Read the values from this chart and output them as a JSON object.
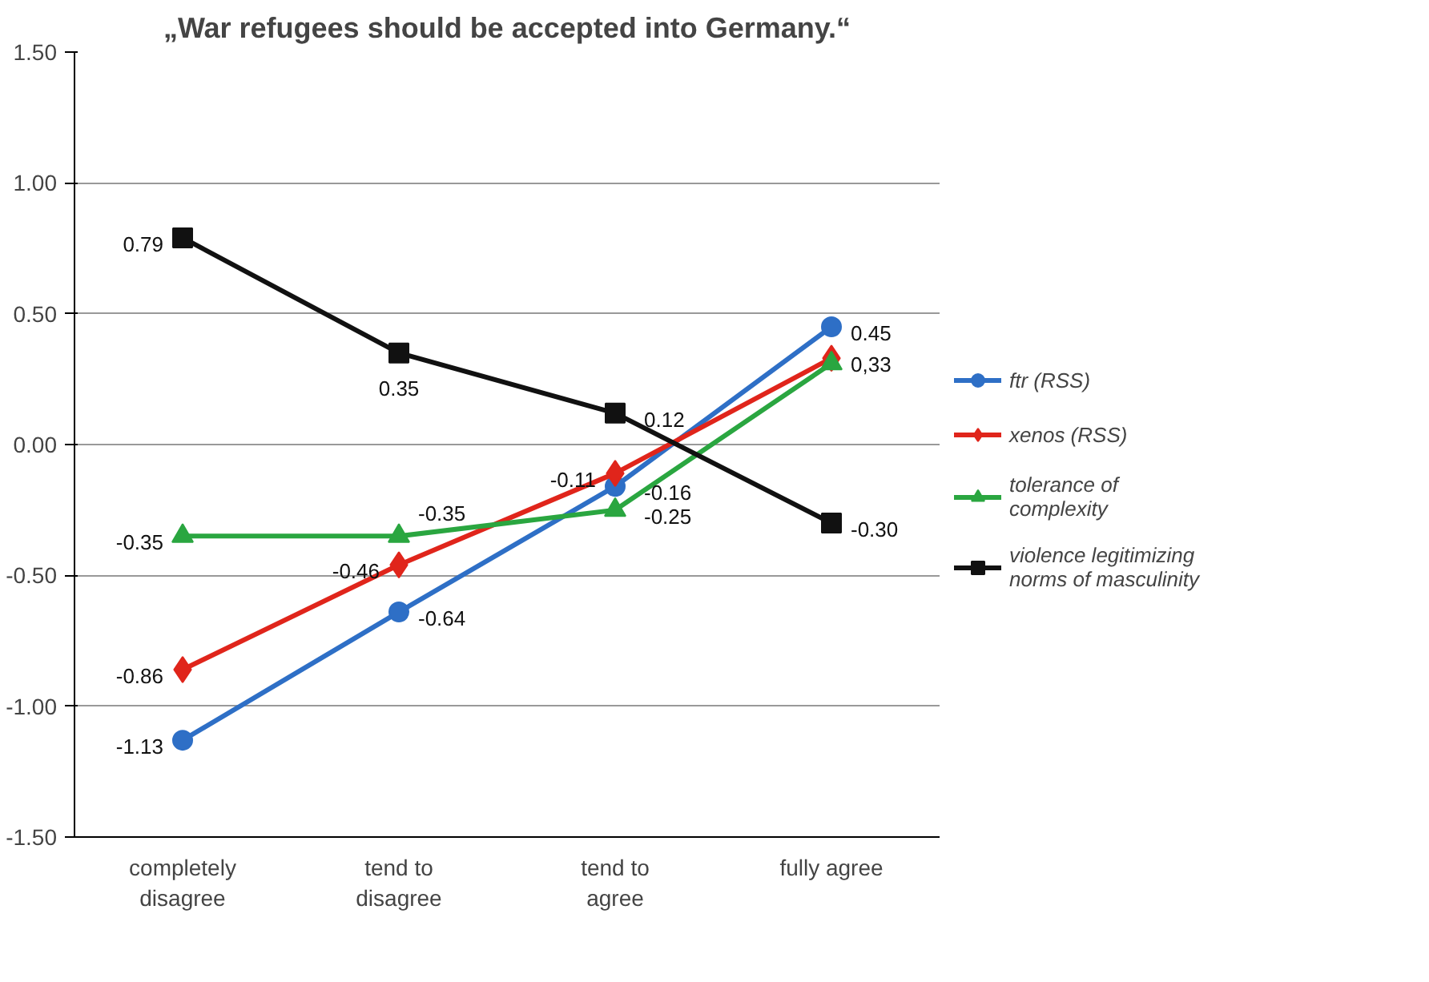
{
  "chart_data": {
    "type": "line",
    "title": "„War refugees should be accepted into Germany.“",
    "categories": [
      "completely disagree",
      "tend to disagree",
      "tend to agree",
      "fully agree"
    ],
    "series": [
      {
        "name": "ftr (RSS)",
        "color": "#2e6fc6",
        "marker": "circle",
        "values": [
          -1.13,
          -0.64,
          -0.16,
          0.45
        ],
        "value_labels": [
          "-1.13",
          "-0.64",
          "-0.16",
          "0.45"
        ]
      },
      {
        "name": "xenos (RSS)",
        "color": "#e0251b",
        "marker": "diamond",
        "values": [
          -0.86,
          -0.46,
          -0.11,
          0.33
        ],
        "value_labels": [
          "-0.86",
          "-0.46",
          "-0.11",
          "0,33"
        ]
      },
      {
        "name": "tolerance of complexity",
        "color": "#2aa640",
        "marker": "triangle",
        "values": [
          -0.35,
          -0.35,
          -0.25,
          0.31
        ],
        "value_labels": [
          "-0.35",
          "-0.35",
          "-0.25",
          null
        ]
      },
      {
        "name": "violence legitimizing norms of masculinity",
        "color": "#111111",
        "marker": "square",
        "values": [
          0.79,
          0.35,
          0.12,
          -0.3
        ],
        "value_labels": [
          "0.79",
          "0.35",
          "0.12",
          "-0.30"
        ]
      }
    ],
    "ylim": [
      -1.5,
      1.5
    ],
    "yticks": [
      {
        "value": -1.5,
        "label": "-1.50"
      },
      {
        "value": -1.0,
        "label": "-1.00"
      },
      {
        "value": -0.5,
        "label": "-0.50"
      },
      {
        "value": 0,
        "label": "0.00"
      },
      {
        "value": 0.5,
        "label": "0.50"
      },
      {
        "value": 1.0,
        "label": "1.00"
      },
      {
        "value": 1.5,
        "label": "1.50"
      }
    ],
    "grid": "y",
    "legend": "right",
    "line_style": "solid"
  }
}
